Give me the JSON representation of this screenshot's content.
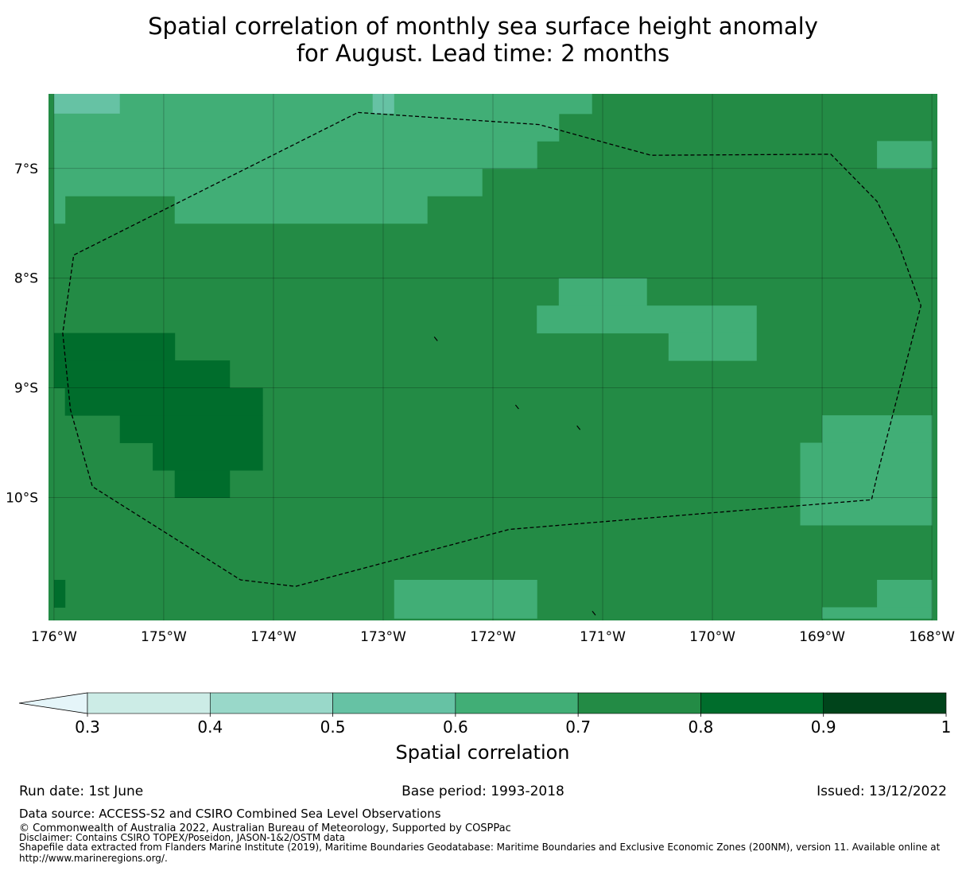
{
  "title": {
    "line1": "Spatial correlation of monthly sea surface height anomaly",
    "line2": "for August. Lead time: 2 months"
  },
  "chart_data": {
    "type": "heatmap",
    "title": "Spatial correlation of monthly sea surface height anomaly for August. Lead time: 2 months",
    "x_ticks": [
      "176°W",
      "175°W",
      "174°W",
      "173°W",
      "172°W",
      "171°W",
      "170°W",
      "169°W",
      "168°W"
    ],
    "y_ticks": [
      "7°S",
      "8°S",
      "9°S",
      "10°S"
    ],
    "xlim": [
      -176.05,
      -167.95
    ],
    "ylim": [
      -11.12,
      -6.32
    ],
    "grid": true,
    "cell_size_deg": 0.25,
    "colorbar": {
      "label": "Spatial correlation",
      "levels": [
        0.3,
        0.4,
        0.5,
        0.6,
        0.7,
        0.8,
        0.9,
        1
      ],
      "tick_labels": [
        "0.3",
        "0.4",
        "0.5",
        "0.6",
        "0.7",
        "0.8",
        "0.9",
        "1"
      ],
      "colors": [
        "#ccece6",
        "#99d8c9",
        "#66c2a4",
        "#41ae76",
        "#238b45",
        "#006d2c",
        "#00441b"
      ],
      "under_color": "#e5f5f9",
      "extend": "min"
    },
    "background_value_range": [
      0.7,
      0.8
    ],
    "regions": [
      {
        "range": [
          0.5,
          0.6
        ],
        "lon": [
          -176.0,
          -175.4
        ],
        "lat": [
          -6.5,
          -6.3
        ]
      },
      {
        "range": [
          0.5,
          0.6
        ],
        "lon": [
          -173.1,
          -172.9
        ],
        "lat": [
          -6.5,
          -6.3
        ]
      },
      {
        "range": [
          0.6,
          0.7
        ],
        "lon": [
          -175.4,
          -173.1
        ],
        "lat": [
          -6.5,
          -6.3
        ]
      },
      {
        "range": [
          0.6,
          0.7
        ],
        "lon": [
          -172.9,
          -171.1
        ],
        "lat": [
          -6.5,
          -6.3
        ]
      },
      {
        "range": [
          0.6,
          0.7
        ],
        "lon": [
          -176.0,
          -171.4
        ],
        "lat": [
          -6.75,
          -6.5
        ]
      },
      {
        "range": [
          0.6,
          0.7
        ],
        "lon": [
          -176.0,
          -171.6
        ],
        "lat": [
          -7.0,
          -6.75
        ]
      },
      {
        "range": [
          0.6,
          0.7
        ],
        "lon": [
          -176.0,
          -172.1
        ],
        "lat": [
          -7.25,
          -7.0
        ]
      },
      {
        "range": [
          0.6,
          0.7
        ],
        "lon": [
          -176.0,
          -175.9
        ],
        "lat": [
          -7.5,
          -7.25
        ]
      },
      {
        "range": [
          0.6,
          0.7
        ],
        "lon": [
          -174.9,
          -172.6
        ],
        "lat": [
          -7.5,
          -7.25
        ]
      },
      {
        "range": [
          0.6,
          0.7
        ],
        "lon": [
          -168.5,
          -168.0
        ],
        "lat": [
          -7.0,
          -6.75
        ]
      },
      {
        "range": [
          0.6,
          0.7
        ],
        "lon": [
          -171.4,
          -170.6
        ],
        "lat": [
          -8.25,
          -8.0
        ]
      },
      {
        "range": [
          0.6,
          0.7
        ],
        "lon": [
          -171.6,
          -169.6
        ],
        "lat": [
          -8.5,
          -8.25
        ]
      },
      {
        "range": [
          0.6,
          0.7
        ],
        "lon": [
          -170.4,
          -169.6
        ],
        "lat": [
          -8.75,
          -8.5
        ]
      },
      {
        "range": [
          0.6,
          0.7
        ],
        "lon": [
          -169.0,
          -168.0
        ],
        "lat": [
          -9.5,
          -9.25
        ]
      },
      {
        "range": [
          0.6,
          0.7
        ],
        "lon": [
          -169.2,
          -168.0
        ],
        "lat": [
          -10.25,
          -9.5
        ]
      },
      {
        "range": [
          0.6,
          0.7
        ],
        "lon": [
          -172.9,
          -171.6
        ],
        "lat": [
          -11.1,
          -10.75
        ]
      },
      {
        "range": [
          0.6,
          0.7
        ],
        "lon": [
          -168.5,
          -168.0
        ],
        "lat": [
          -11.0,
          -10.75
        ]
      },
      {
        "range": [
          0.6,
          0.7
        ],
        "lon": [
          -169.0,
          -168.0
        ],
        "lat": [
          -11.1,
          -11.0
        ]
      },
      {
        "range": [
          0.8,
          0.9
        ],
        "lon": [
          -176.0,
          -174.9
        ],
        "lat": [
          -8.75,
          -8.5
        ]
      },
      {
        "range": [
          0.8,
          0.9
        ],
        "lon": [
          -176.0,
          -174.4
        ],
        "lat": [
          -9.0,
          -8.75
        ]
      },
      {
        "range": [
          0.8,
          0.9
        ],
        "lon": [
          -175.9,
          -174.1
        ],
        "lat": [
          -9.25,
          -9.0
        ]
      },
      {
        "range": [
          0.8,
          0.9
        ],
        "lon": [
          -175.4,
          -174.1
        ],
        "lat": [
          -9.5,
          -9.25
        ]
      },
      {
        "range": [
          0.8,
          0.9
        ],
        "lon": [
          -175.1,
          -174.1
        ],
        "lat": [
          -9.75,
          -9.5
        ]
      },
      {
        "range": [
          0.8,
          0.9
        ],
        "lon": [
          -174.9,
          -174.4
        ],
        "lat": [
          -10.0,
          -9.75
        ]
      },
      {
        "range": [
          0.8,
          0.9
        ],
        "lon": [
          -176.0,
          -175.9
        ],
        "lat": [
          -11.0,
          -10.75
        ]
      }
    ],
    "eez_boundary": {
      "style": "dashed",
      "points": [
        [
          -173.23,
          -6.49
        ],
        [
          -171.58,
          -6.6
        ],
        [
          -170.56,
          -6.88
        ],
        [
          -168.92,
          -6.87
        ],
        [
          -168.5,
          -7.3
        ],
        [
          -168.3,
          -7.7
        ],
        [
          -168.1,
          -8.25
        ],
        [
          -168.5,
          -9.8
        ],
        [
          -168.55,
          -10.02
        ],
        [
          -171.85,
          -10.29
        ],
        [
          -173.8,
          -10.81
        ],
        [
          -174.3,
          -10.75
        ],
        [
          -175.65,
          -9.9
        ],
        [
          -175.85,
          -9.2
        ],
        [
          -175.92,
          -8.5
        ],
        [
          -175.82,
          -7.79
        ],
        [
          -173.23,
          -6.49
        ]
      ]
    },
    "islands": [
      {
        "lon": -172.52,
        "lat": -8.55
      },
      {
        "lon": -171.78,
        "lat": -9.17
      },
      {
        "lon": -171.22,
        "lat": -9.36
      },
      {
        "lon": -171.08,
        "lat": -11.05
      }
    ]
  },
  "footer": {
    "run_date": "Run date: 1st June",
    "base_period": "Base period: 1993-2018",
    "issued": "Issued: 13/12/2022",
    "data_source": "Data source: ACCESS-S2 and CSIRO Combined Sea Level Observations",
    "copyright": "© Commonwealth of Australia 2022, Australian Bureau of Meteorology, Supported by COSPPac",
    "disclaimer": "Disclaimer: Contains CSIRO TOPEX/Poseidon, JASON-1&2/OSTM data",
    "shapefile_line1": "Shapefile data extracted from Flanders Marine Institute (2019), Maritime Boundaries Geodatabase: Maritime Boundaries and Exclusive Economic Zones (200NM), version 11. Available online at",
    "shapefile_line2": "http://www.marineregions.org/."
  }
}
